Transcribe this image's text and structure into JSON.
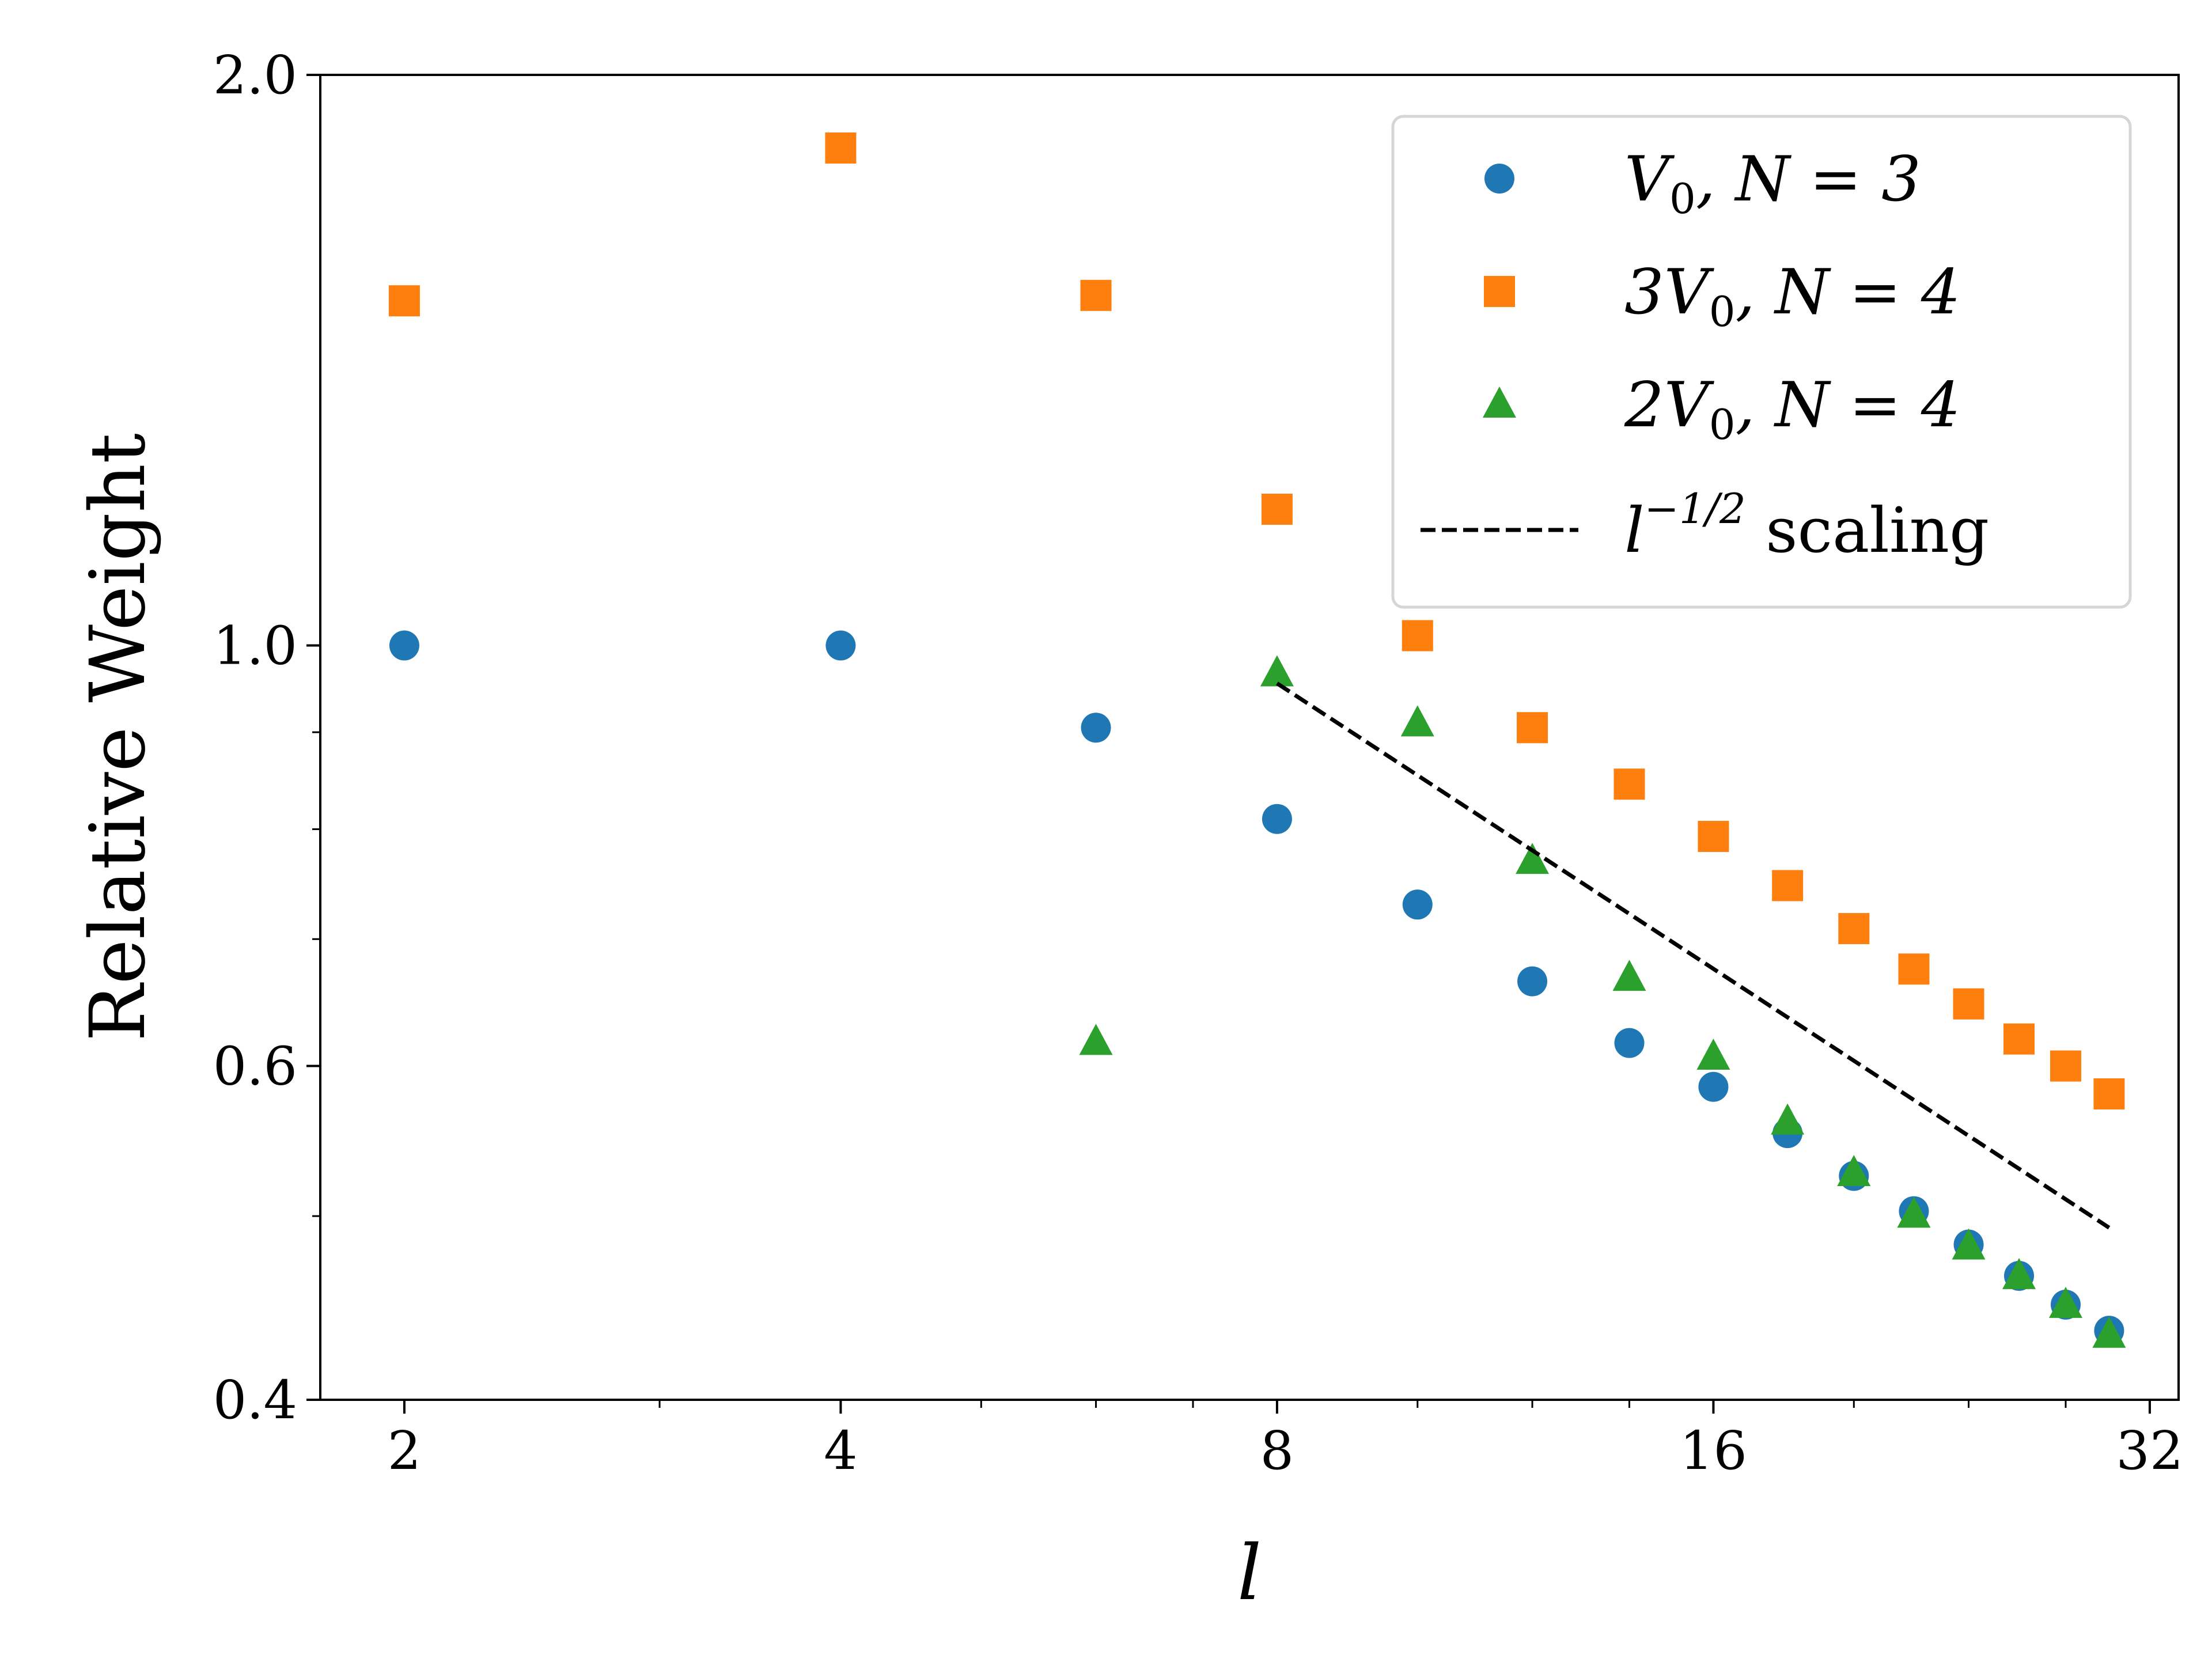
{
  "chart_data": {
    "type": "scatter",
    "title": "",
    "xlabel": "l",
    "ylabel": "Relative Weight",
    "xscale": "log2",
    "yscale": "log",
    "xlim": [
      1.75,
      33.5
    ],
    "ylim": [
      0.4,
      2.0
    ],
    "xticks": [
      2,
      4,
      8,
      16,
      32
    ],
    "xtick_labels": [
      "2",
      "4",
      "8",
      "16",
      "32"
    ],
    "yticks": [
      0.4,
      0.6,
      1.0,
      2.0
    ],
    "ytick_labels": [
      "0.4",
      "0.6",
      "1.0",
      "2.0"
    ],
    "legend_position": "top-right",
    "grid": false,
    "series": [
      {
        "name": "V0, N=3",
        "legend_main": "V",
        "legend_sub": "0",
        "legend_rest": ", N = 3",
        "marker": "circle",
        "color": "#1f77b4",
        "x": [
          2,
          4,
          6,
          8,
          10,
          12,
          14,
          16,
          18,
          20,
          22,
          24,
          26,
          28,
          30
        ],
        "y": [
          1.0,
          1.0,
          0.905,
          0.81,
          0.73,
          0.665,
          0.617,
          0.585,
          0.553,
          0.525,
          0.503,
          0.483,
          0.465,
          0.449,
          0.435
        ]
      },
      {
        "name": "3V0, N=4",
        "legend_main": "3V",
        "legend_sub": "0",
        "legend_rest": ", N = 4",
        "marker": "square",
        "color": "#ff7f0e",
        "x": [
          2,
          4,
          6,
          8,
          10,
          12,
          14,
          16,
          18,
          20,
          22,
          24,
          26,
          28,
          30
        ],
        "y": [
          1.52,
          1.83,
          1.53,
          1.18,
          1.012,
          0.905,
          0.845,
          0.793,
          0.747,
          0.709,
          0.675,
          0.647,
          0.62,
          0.6,
          0.58
        ]
      },
      {
        "name": "2V0, N=4",
        "legend_main": "2V",
        "legend_sub": "0",
        "legend_rest": ", N = 4",
        "marker": "triangle",
        "color": "#2ca02c",
        "x": [
          6,
          8,
          10,
          12,
          14,
          16,
          18,
          20,
          22,
          24,
          26,
          28,
          30
        ],
        "y": [
          0.618,
          0.967,
          0.91,
          0.77,
          0.668,
          0.607,
          0.561,
          0.527,
          0.501,
          0.482,
          0.465,
          0.449,
          0.433
        ]
      },
      {
        "name": "l^{-1/2} scaling",
        "legend_main": "l",
        "legend_sup": "−1/2",
        "legend_rest": " scaling",
        "marker": "dashed-line",
        "color": "#000000",
        "x": [
          8,
          30
        ],
        "y": [
          0.955,
          0.493
        ]
      }
    ]
  }
}
